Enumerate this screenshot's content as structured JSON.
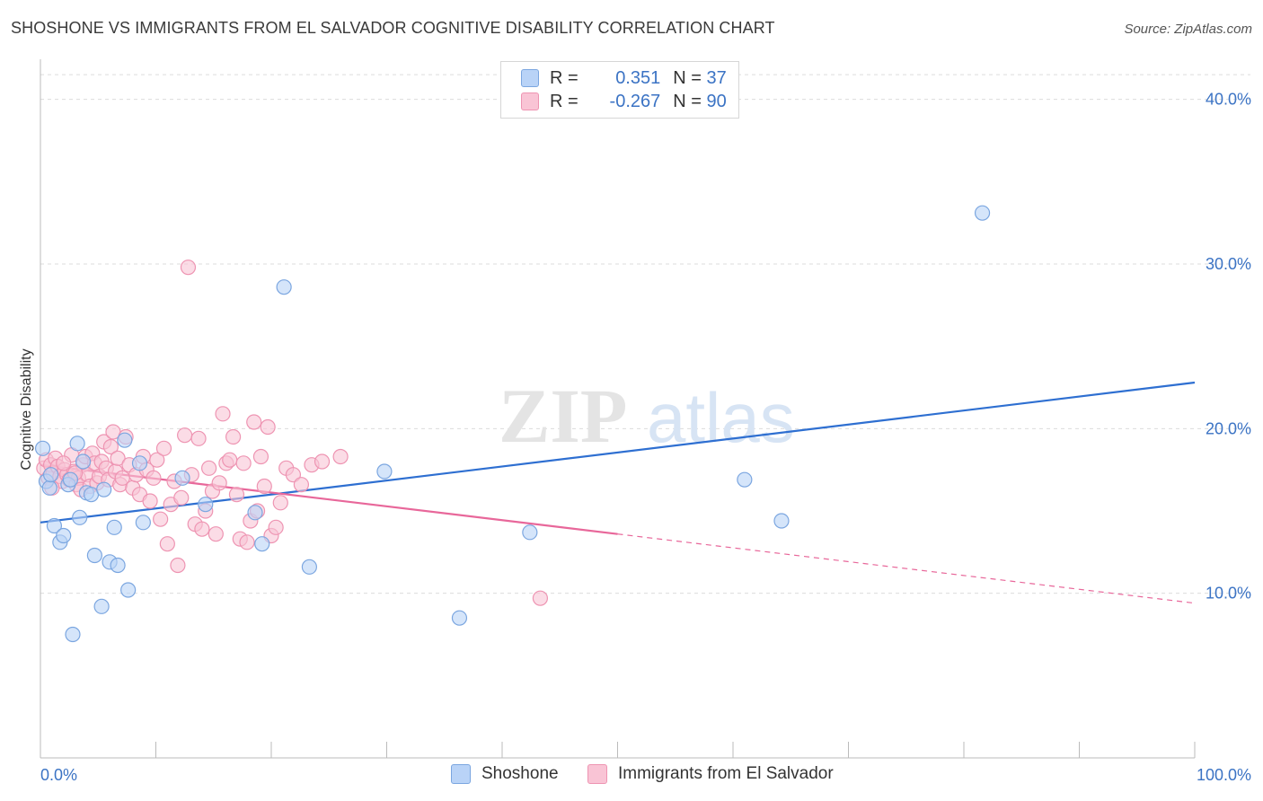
{
  "title": "SHOSHONE VS IMMIGRANTS FROM EL SALVADOR COGNITIVE DISABILITY CORRELATION CHART",
  "source": "Source: ZipAtlas.com",
  "watermark": {
    "zip": "ZIP",
    "atlas": "atlas"
  },
  "legend": {
    "rows": [
      {
        "r_label": "R = ",
        "r_value": "0.351",
        "n_label": "N = ",
        "n_value": "37"
      },
      {
        "r_label": "R = ",
        "r_value": "-0.267",
        "n_label": "N = ",
        "n_value": "90"
      }
    ]
  },
  "colors": {
    "shoshone_fill": "#b9d3f7",
    "shoshone_stroke": "#7ba6e0",
    "shoshone_line": "#2e6fd1",
    "salvador_fill": "#f9c4d5",
    "salvador_stroke": "#ee94b2",
    "salvador_line": "#e8679a",
    "axis_label": "#3b73c4",
    "grid": "#dcdcdc"
  },
  "chart_data": {
    "type": "scatter",
    "title": "SHOSHONE VS IMMIGRANTS FROM EL SALVADOR COGNITIVE DISABILITY CORRELATION CHART",
    "xlabel": "",
    "ylabel": "Cognitive Disability",
    "xlim": [
      0,
      100
    ],
    "ylim": [
      0,
      42
    ],
    "x_tick_labels": [
      "0.0%",
      "100.0%"
    ],
    "y_ticks": [
      10,
      20,
      30,
      40
    ],
    "y_tick_labels": [
      "10.0%",
      "20.0%",
      "30.0%",
      "40.0%"
    ],
    "grid": true,
    "series": [
      {
        "name": "Shoshone",
        "r": 0.351,
        "n": 37,
        "trend": {
          "x": [
            0,
            100
          ],
          "y": [
            14.3,
            22.8
          ],
          "dashed_from": null
        },
        "points": [
          [
            0.2,
            18.8
          ],
          [
            0.5,
            16.8
          ],
          [
            0.8,
            16.4
          ],
          [
            1.2,
            14.1
          ],
          [
            1.7,
            13.1
          ],
          [
            2.0,
            13.5
          ],
          [
            2.4,
            16.6
          ],
          [
            2.8,
            7.5
          ],
          [
            3.2,
            19.1
          ],
          [
            3.4,
            14.6
          ],
          [
            3.7,
            18.0
          ],
          [
            4.0,
            16.1
          ],
          [
            4.4,
            16.0
          ],
          [
            4.7,
            12.3
          ],
          [
            5.3,
            9.2
          ],
          [
            5.5,
            16.3
          ],
          [
            6.0,
            11.9
          ],
          [
            6.4,
            14.0
          ],
          [
            6.7,
            11.7
          ],
          [
            7.3,
            19.3
          ],
          [
            7.6,
            10.2
          ],
          [
            8.6,
            17.9
          ],
          [
            8.9,
            14.3
          ],
          [
            12.3,
            17.0
          ],
          [
            14.3,
            15.4
          ],
          [
            18.6,
            14.9
          ],
          [
            19.2,
            13.0
          ],
          [
            21.1,
            28.6
          ],
          [
            23.3,
            11.6
          ],
          [
            29.8,
            17.4
          ],
          [
            36.3,
            8.5
          ],
          [
            42.4,
            13.7
          ],
          [
            61.0,
            16.9
          ],
          [
            64.2,
            14.4
          ],
          [
            81.6,
            33.1
          ],
          [
            0.9,
            17.2
          ],
          [
            2.6,
            16.9
          ]
        ]
      },
      {
        "name": "Immigrants from El Salvador",
        "r": -0.267,
        "n": 90,
        "trend": {
          "x": [
            0,
            100
          ],
          "y": [
            17.8,
            9.4
          ],
          "dashed_from": 50
        },
        "points": [
          [
            0.3,
            17.6
          ],
          [
            0.5,
            18.1
          ],
          [
            0.7,
            17.0
          ],
          [
            0.9,
            17.8
          ],
          [
            1.1,
            17.3
          ],
          [
            1.3,
            18.2
          ],
          [
            1.5,
            17.7
          ],
          [
            1.7,
            17.1
          ],
          [
            1.9,
            16.8
          ],
          [
            2.1,
            17.5
          ],
          [
            2.3,
            17.2
          ],
          [
            2.5,
            16.9
          ],
          [
            2.7,
            18.4
          ],
          [
            2.9,
            17.4
          ],
          [
            3.1,
            16.6
          ],
          [
            3.3,
            17.0
          ],
          [
            3.5,
            16.3
          ],
          [
            3.7,
            17.8
          ],
          [
            3.9,
            18.3
          ],
          [
            4.1,
            17.2
          ],
          [
            4.3,
            16.5
          ],
          [
            4.5,
            18.5
          ],
          [
            4.7,
            17.9
          ],
          [
            4.9,
            16.7
          ],
          [
            5.1,
            17.1
          ],
          [
            5.3,
            18.0
          ],
          [
            5.5,
            19.2
          ],
          [
            5.7,
            17.6
          ],
          [
            5.9,
            16.9
          ],
          [
            6.1,
            18.9
          ],
          [
            6.3,
            19.8
          ],
          [
            6.5,
            17.4
          ],
          [
            6.7,
            18.2
          ],
          [
            6.9,
            16.6
          ],
          [
            7.1,
            17.0
          ],
          [
            7.4,
            19.5
          ],
          [
            7.7,
            17.8
          ],
          [
            8.0,
            16.4
          ],
          [
            8.3,
            17.2
          ],
          [
            8.6,
            16.0
          ],
          [
            8.9,
            18.3
          ],
          [
            9.2,
            17.5
          ],
          [
            9.5,
            15.6
          ],
          [
            9.8,
            17.0
          ],
          [
            10.1,
            18.1
          ],
          [
            10.4,
            14.5
          ],
          [
            10.7,
            18.8
          ],
          [
            11.0,
            13.0
          ],
          [
            11.3,
            15.4
          ],
          [
            11.6,
            16.8
          ],
          [
            11.9,
            11.7
          ],
          [
            12.2,
            15.8
          ],
          [
            12.5,
            19.6
          ],
          [
            12.8,
            29.8
          ],
          [
            13.1,
            17.2
          ],
          [
            13.4,
            14.2
          ],
          [
            13.7,
            19.4
          ],
          [
            14.0,
            13.9
          ],
          [
            14.3,
            15.0
          ],
          [
            14.6,
            17.6
          ],
          [
            14.9,
            16.2
          ],
          [
            15.2,
            13.6
          ],
          [
            15.5,
            16.7
          ],
          [
            15.8,
            20.9
          ],
          [
            16.1,
            17.9
          ],
          [
            16.4,
            18.1
          ],
          [
            16.7,
            19.5
          ],
          [
            17.0,
            16.0
          ],
          [
            17.3,
            13.3
          ],
          [
            17.6,
            17.9
          ],
          [
            17.9,
            13.1
          ],
          [
            18.2,
            14.4
          ],
          [
            18.5,
            20.4
          ],
          [
            18.8,
            15.0
          ],
          [
            19.1,
            18.3
          ],
          [
            19.4,
            16.5
          ],
          [
            19.7,
            20.1
          ],
          [
            20.0,
            13.5
          ],
          [
            20.4,
            14.0
          ],
          [
            20.8,
            15.5
          ],
          [
            21.3,
            17.6
          ],
          [
            21.9,
            17.2
          ],
          [
            22.6,
            16.6
          ],
          [
            23.5,
            17.8
          ],
          [
            24.4,
            18.0
          ],
          [
            26.0,
            18.3
          ],
          [
            43.3,
            9.7
          ],
          [
            1.0,
            16.4
          ],
          [
            2.0,
            17.9
          ],
          [
            3.0,
            17.3
          ]
        ]
      }
    ]
  },
  "bottom_legend": [
    {
      "label": "Shoshone"
    },
    {
      "label": "Immigrants from El Salvador"
    }
  ]
}
